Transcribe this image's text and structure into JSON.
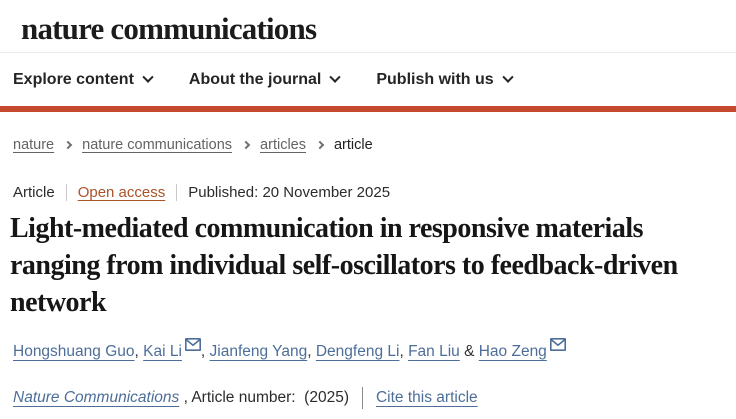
{
  "colors": {
    "accent_red": "#c5492f",
    "link_blue": "#4d6e99",
    "open_access": "#ab5328",
    "text_dark": "#222222",
    "breadcrumb_gray": "#636363"
  },
  "header": {
    "logo": "nature communications",
    "nav": [
      {
        "label": "Explore content",
        "icon": "chevron-down-icon"
      },
      {
        "label": "About the journal",
        "icon": "chevron-down-icon"
      },
      {
        "label": "Publish with us",
        "icon": "chevron-down-icon"
      }
    ]
  },
  "breadcrumb": {
    "items": [
      {
        "label": "nature"
      },
      {
        "label": "nature communications"
      },
      {
        "label": "articles"
      },
      {
        "label": "article"
      }
    ]
  },
  "article": {
    "meta": {
      "type": "Article",
      "access_link": "Open access",
      "published": "Published: 20 November 2025"
    },
    "title": "Light-mediated communication in responsive materials ranging from individual self-oscillators to feedback-driven network",
    "authors": [
      {
        "name": "Hongshuang Guo",
        "email_icon": false
      },
      {
        "name": "Kai Li",
        "email_icon": true
      },
      {
        "name": "Jianfeng Yang",
        "email_icon": false
      },
      {
        "name": "Dengfeng Li",
        "email_icon": false
      },
      {
        "name": "Fan Liu",
        "email_icon": false
      },
      {
        "name": "Hao Zeng",
        "email_icon": true
      }
    ],
    "separators": {
      "comma": ", ",
      "ampersand": " & "
    },
    "citation": {
      "journal": "Nature Communications",
      "article_number": " , Article number:  (2025)",
      "cite_link": "Cite this article"
    }
  }
}
